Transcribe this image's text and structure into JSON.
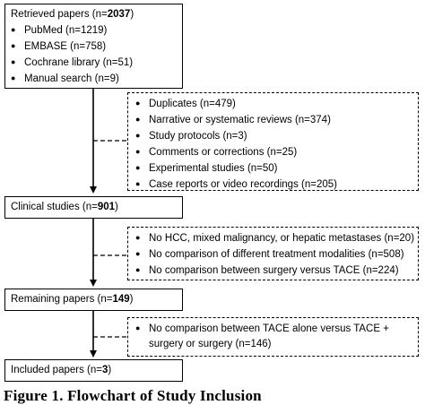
{
  "boxes": {
    "retrieved": {
      "label": "Retrieved papers (n=",
      "count": "2037",
      "close": ")",
      "items": [
        "PubMed (n=1219)",
        "EMBASE (n=758)",
        "Cochrane library (n=51)",
        "Manual search (n=9)"
      ]
    },
    "exclusions1": {
      "items": [
        "Duplicates (n=479)",
        "Narrative or systematic reviews (n=374)",
        "Study protocols (n=3)",
        "Comments or corrections (n=25)",
        "Experimental studies (n=50)",
        "Case reports or video recordings (n=205)"
      ]
    },
    "clinical": {
      "label": "Clinical studies (n=",
      "count": "901",
      "close": ")"
    },
    "exclusions2": {
      "items": [
        "No HCC, mixed malignancy, or hepatic metastases (n=20)",
        "No comparison of different treatment modalities (n=508)",
        "No comparison between surgery versus TACE (n=224)"
      ]
    },
    "remaining": {
      "label": "Remaining papers (n=",
      "count": "149",
      "close": ")"
    },
    "exclusions3": {
      "line1": "No comparison between TACE alone versus TACE +",
      "line2": "surgery or surgery (n=146)"
    },
    "included": {
      "label": "Included papers (n=",
      "count": "3",
      "close": ")"
    }
  },
  "bullet_glyph": "●",
  "caption": "Figure 1. Flowchart of Study Inclusion"
}
